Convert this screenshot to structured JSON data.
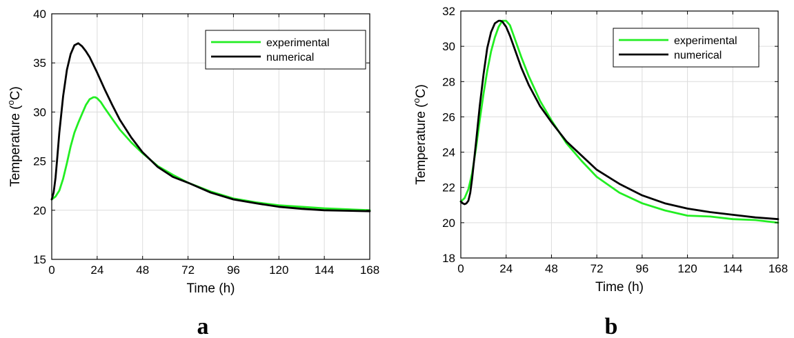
{
  "chart_data": [
    {
      "type": "line",
      "panel_label": "a",
      "xlabel": "Time (h)",
      "ylabel_main": "Temperature (",
      "ylabel_sup": "o",
      "ylabel_tail": "C)",
      "xlim": [
        0,
        168
      ],
      "ylim": [
        15,
        40
      ],
      "xticks": [
        0,
        24,
        48,
        72,
        96,
        120,
        144,
        168
      ],
      "yticks": [
        15,
        20,
        25,
        30,
        35,
        40
      ],
      "grid": true,
      "legend": "top-right",
      "series": [
        {
          "name": "experimental",
          "color": "#22ee22",
          "x": [
            0,
            2,
            4,
            6,
            8,
            10,
            12,
            14,
            16,
            18,
            20,
            22,
            23,
            24,
            26,
            28,
            32,
            36,
            42,
            48,
            56,
            64,
            72,
            84,
            96,
            108,
            120,
            132,
            144,
            156,
            168
          ],
          "y": [
            21.1,
            21.4,
            22.0,
            23.2,
            24.8,
            26.5,
            27.9,
            28.9,
            29.8,
            30.7,
            31.3,
            31.5,
            31.5,
            31.4,
            31.0,
            30.4,
            29.3,
            28.2,
            26.9,
            25.8,
            24.5,
            23.6,
            22.8,
            21.9,
            21.2,
            20.8,
            20.5,
            20.35,
            20.2,
            20.1,
            20.0
          ]
        },
        {
          "name": "numerical",
          "color": "#000000",
          "x": [
            0,
            1,
            2,
            3,
            4,
            6,
            8,
            10,
            12,
            14,
            16,
            18,
            20,
            24,
            28,
            32,
            36,
            42,
            48,
            56,
            64,
            72,
            84,
            96,
            108,
            120,
            132,
            144,
            156,
            168
          ],
          "y": [
            21.1,
            21.8,
            23.3,
            25.5,
            27.9,
            31.6,
            34.3,
            35.9,
            36.8,
            37.0,
            36.7,
            36.2,
            35.6,
            34.0,
            32.3,
            30.7,
            29.2,
            27.4,
            25.9,
            24.4,
            23.4,
            22.8,
            21.8,
            21.1,
            20.7,
            20.35,
            20.15,
            20.0,
            19.95,
            19.9
          ]
        }
      ]
    },
    {
      "type": "line",
      "panel_label": "b",
      "xlabel": "Time (h)",
      "ylabel_main": "Temperature (",
      "ylabel_sup": "o",
      "ylabel_tail": "C)",
      "xlim": [
        0,
        168
      ],
      "ylim": [
        18,
        32
      ],
      "xticks": [
        0,
        24,
        48,
        72,
        96,
        120,
        144,
        168
      ],
      "yticks": [
        18,
        20,
        22,
        24,
        26,
        28,
        30,
        32
      ],
      "grid": true,
      "legend": "top-right",
      "series": [
        {
          "name": "experimental",
          "color": "#22ee22",
          "x": [
            0,
            2,
            4,
            6,
            8,
            10,
            12,
            14,
            16,
            18,
            20,
            22,
            24,
            26,
            28,
            32,
            36,
            42,
            48,
            56,
            64,
            72,
            84,
            96,
            108,
            120,
            132,
            144,
            156,
            168
          ],
          "y": [
            21.2,
            21.4,
            21.9,
            22.8,
            24.2,
            25.8,
            27.3,
            28.6,
            29.7,
            30.5,
            31.1,
            31.45,
            31.45,
            31.2,
            30.6,
            29.4,
            28.3,
            26.9,
            25.8,
            24.5,
            23.5,
            22.6,
            21.7,
            21.1,
            20.7,
            20.4,
            20.35,
            20.2,
            20.15,
            20.0
          ]
        },
        {
          "name": "numerical",
          "color": "#000000",
          "x": [
            0,
            1,
            2,
            3,
            4,
            5,
            6,
            8,
            10,
            12,
            14,
            16,
            18,
            20,
            21,
            22,
            24,
            26,
            28,
            32,
            36,
            42,
            48,
            56,
            64,
            72,
            84,
            96,
            108,
            120,
            132,
            144,
            156,
            168
          ],
          "y": [
            21.2,
            21.1,
            21.05,
            21.1,
            21.25,
            21.7,
            22.5,
            24.5,
            26.6,
            28.4,
            29.9,
            30.8,
            31.3,
            31.45,
            31.45,
            31.4,
            31.1,
            30.6,
            30.0,
            28.8,
            27.8,
            26.6,
            25.7,
            24.6,
            23.8,
            23.0,
            22.2,
            21.55,
            21.1,
            20.8,
            20.6,
            20.45,
            20.3,
            20.2
          ]
        }
      ]
    }
  ]
}
